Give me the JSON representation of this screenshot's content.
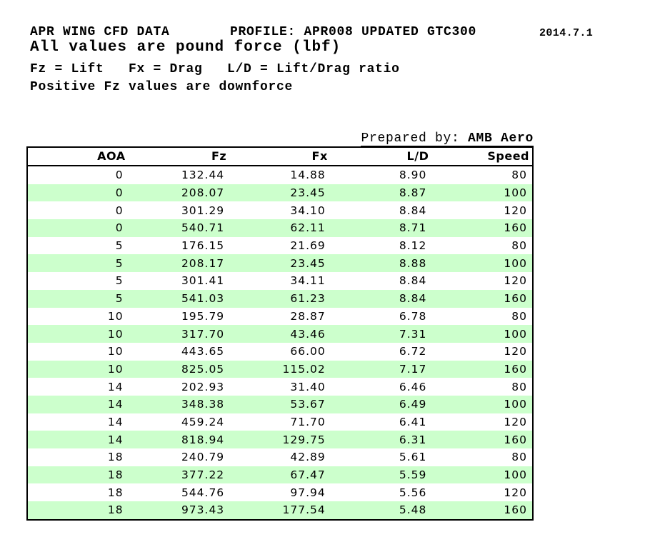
{
  "header": {
    "title": "APR WING CFD DATA",
    "profile": "PROFILE: APR008 UPDATED GTC300",
    "date": "2014.7.1",
    "units_note": "All values are pound force (lbf)",
    "legend": "Fz = Lift   Fx = Drag   L/D = Lift/Drag ratio",
    "downforce_note": "Positive Fz values are downforce"
  },
  "prepared_by": {
    "label": "Prepared by: ",
    "value": "AMB Aero"
  },
  "colors": {
    "row_band_green": "#ccffcc",
    "border_black": "#000000",
    "background": "#ffffff"
  },
  "table": {
    "columns": [
      "AOA",
      "Fz",
      "Fx",
      "L/D",
      "Speed"
    ],
    "rows": [
      [
        "0",
        "132.44",
        "14.88",
        "8.90",
        "80"
      ],
      [
        "0",
        "208.07",
        "23.45",
        "8.87",
        "100"
      ],
      [
        "0",
        "301.29",
        "34.10",
        "8.84",
        "120"
      ],
      [
        "0",
        "540.71",
        "62.11",
        "8.71",
        "160"
      ],
      [
        "5",
        "176.15",
        "21.69",
        "8.12",
        "80"
      ],
      [
        "5",
        "208.17",
        "23.45",
        "8.88",
        "100"
      ],
      [
        "5",
        "301.41",
        "34.11",
        "8.84",
        "120"
      ],
      [
        "5",
        "541.03",
        "61.23",
        "8.84",
        "160"
      ],
      [
        "10",
        "195.79",
        "28.87",
        "6.78",
        "80"
      ],
      [
        "10",
        "317.70",
        "43.46",
        "7.31",
        "100"
      ],
      [
        "10",
        "443.65",
        "66.00",
        "6.72",
        "120"
      ],
      [
        "10",
        "825.05",
        "115.02",
        "7.17",
        "160"
      ],
      [
        "14",
        "202.93",
        "31.40",
        "6.46",
        "80"
      ],
      [
        "14",
        "348.38",
        "53.67",
        "6.49",
        "100"
      ],
      [
        "14",
        "459.24",
        "71.70",
        "6.41",
        "120"
      ],
      [
        "14",
        "818.94",
        "129.75",
        "6.31",
        "160"
      ],
      [
        "18",
        "240.79",
        "42.89",
        "5.61",
        "80"
      ],
      [
        "18",
        "377.22",
        "67.47",
        "5.59",
        "100"
      ],
      [
        "18",
        "544.76",
        "97.94",
        "5.56",
        "120"
      ],
      [
        "18",
        "973.43",
        "177.54",
        "5.48",
        "160"
      ]
    ]
  }
}
